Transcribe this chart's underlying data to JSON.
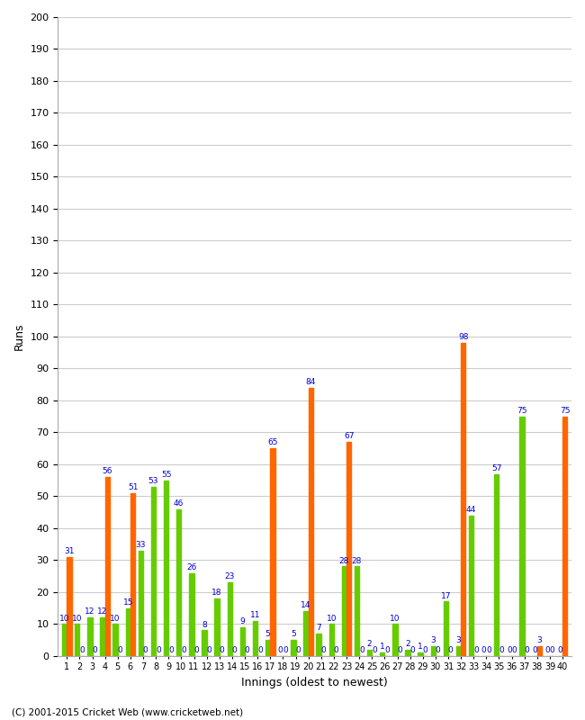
{
  "innings": [
    1,
    2,
    3,
    4,
    5,
    6,
    7,
    8,
    9,
    10,
    11,
    12,
    13,
    14,
    15,
    16,
    17,
    18,
    19,
    20,
    21,
    22,
    23,
    24,
    25,
    26,
    27,
    28,
    29,
    30,
    31,
    32,
    33,
    34,
    35,
    36,
    37,
    38,
    39,
    40
  ],
  "green_values": [
    10,
    10,
    12,
    12,
    10,
    15,
    33,
    53,
    55,
    46,
    26,
    8,
    18,
    23,
    9,
    11,
    5,
    0,
    5,
    14,
    7,
    10,
    28,
    28,
    2,
    1,
    10,
    2,
    1,
    3,
    17,
    3,
    44,
    0,
    57,
    0,
    75,
    0,
    0,
    0
  ],
  "orange_values": [
    31,
    0,
    0,
    56,
    0,
    51,
    0,
    0,
    0,
    0,
    0,
    0,
    0,
    0,
    0,
    0,
    65,
    0,
    0,
    84,
    0,
    0,
    67,
    0,
    0,
    0,
    0,
    0,
    0,
    0,
    0,
    98,
    0,
    0,
    0,
    0,
    0,
    3,
    0,
    75
  ],
  "show_zero_green": [
    false,
    false,
    false,
    false,
    false,
    false,
    false,
    false,
    false,
    false,
    false,
    false,
    false,
    false,
    false,
    false,
    false,
    true,
    false,
    false,
    false,
    false,
    false,
    false,
    false,
    false,
    false,
    false,
    false,
    false,
    false,
    false,
    false,
    true,
    false,
    true,
    false,
    true,
    true,
    true
  ],
  "show_zero_orange": [
    false,
    true,
    true,
    false,
    true,
    false,
    true,
    true,
    true,
    true,
    true,
    true,
    true,
    true,
    true,
    true,
    false,
    true,
    true,
    false,
    true,
    true,
    false,
    true,
    true,
    true,
    true,
    true,
    true,
    true,
    true,
    false,
    true,
    true,
    true,
    true,
    true,
    false,
    true,
    false
  ],
  "bar_color_green": "#66cc00",
  "bar_color_orange": "#ff6600",
  "background_color": "#ffffff",
  "grid_color": "#cccccc",
  "ylabel": "Runs",
  "xlabel": "Innings (oldest to newest)",
  "ylim": [
    0,
    200
  ],
  "yticks": [
    0,
    10,
    20,
    30,
    40,
    50,
    60,
    70,
    80,
    90,
    100,
    110,
    120,
    130,
    140,
    150,
    160,
    170,
    180,
    190,
    200
  ],
  "footer": "(C) 2001-2015 Cricket Web (www.cricketweb.net)",
  "value_color": "#0000cc",
  "value_fontsize": 6.5
}
